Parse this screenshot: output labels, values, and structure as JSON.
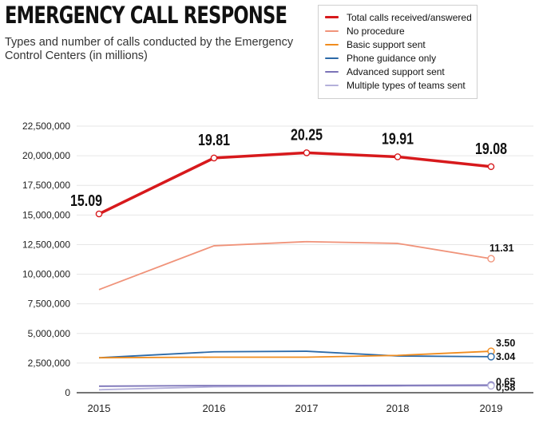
{
  "title": "EMERGENCY CALL RESPONSE",
  "subtitle": "Types and number of calls conducted by the Emergency Control Centers (in millions)",
  "chart_data": {
    "type": "line",
    "x": [
      "2015",
      "2016",
      "2017",
      "2018",
      "2019"
    ],
    "ylim": [
      0,
      22500000
    ],
    "yticks": [
      0,
      2500000,
      5000000,
      7500000,
      10000000,
      12500000,
      15000000,
      17500000,
      20000000,
      22500000
    ],
    "ytick_labels": [
      "0",
      "2,500,000",
      "5,000,000",
      "7,500,000",
      "10,000,000",
      "12,500,000",
      "15,000,000",
      "17,500,000",
      "20,000,000",
      "22,500,000"
    ],
    "grid": "horizontal",
    "legend_position": "top-right",
    "series": [
      {
        "name": "Total calls received/answered",
        "color": "#d7191c",
        "values": [
          15090000,
          19810000,
          20250000,
          19910000,
          19080000
        ],
        "labels": [
          "15.09",
          "19.81",
          "20.25",
          "19.91",
          "19.08"
        ]
      },
      {
        "name": "No procedure",
        "color": "#f0937a",
        "values": [
          8700000,
          12400000,
          12750000,
          12600000,
          11310000
        ],
        "labels": [
          "",
          "",
          "",
          "",
          "11.31"
        ]
      },
      {
        "name": "Basic support sent",
        "color": "#f08c1e",
        "values": [
          2950000,
          3000000,
          3000000,
          3150000,
          3500000
        ],
        "labels": [
          "",
          "",
          "",
          "",
          "3.50"
        ]
      },
      {
        "name": "Phone guidance only",
        "color": "#2c6aa8",
        "values": [
          2950000,
          3450000,
          3500000,
          3100000,
          3040000
        ],
        "labels": [
          "",
          "",
          "",
          "",
          "3.04"
        ]
      },
      {
        "name": "Advanced support sent",
        "color": "#7b73b8",
        "values": [
          550000,
          600000,
          600000,
          620000,
          650000
        ],
        "labels": [
          "",
          "",
          "",
          "",
          "0,65"
        ]
      },
      {
        "name": "Multiple types of teams sent",
        "color": "#b4b0da",
        "values": [
          250000,
          500000,
          550000,
          570000,
          580000
        ],
        "labels": [
          "",
          "",
          "",
          "",
          "0,58"
        ]
      }
    ]
  }
}
